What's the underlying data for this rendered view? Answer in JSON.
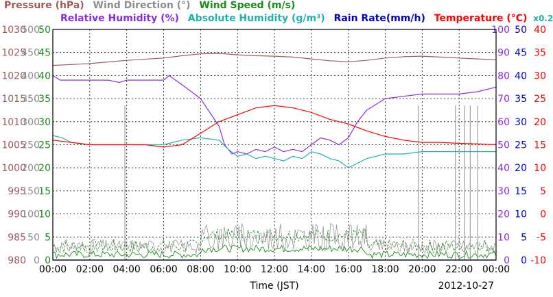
{
  "chart_data": {
    "type": "line",
    "date_label": "2012-10-27",
    "xlabel": "Time (JST)",
    "x_ticks": [
      "00:00",
      "02:00",
      "04:00",
      "06:00",
      "08:00",
      "10:00",
      "12:00",
      "14:00",
      "16:00",
      "18:00",
      "20:00",
      "22:00",
      "00:00"
    ],
    "legend_row1": [
      {
        "text": "Pressure (hPa)",
        "color": "#a05a5a"
      },
      {
        "text": "Wind Direction (°)",
        "color": "#8c8c8c"
      },
      {
        "text": "Wind Speed (m/s)",
        "color": "#1a8c1a"
      }
    ],
    "legend_row2": [
      {
        "text": "Relative Humidity (%)",
        "color": "#8a2be2"
      },
      {
        "text": "Absolute Humidity (g/m³)",
        "color": "#20b2aa"
      },
      {
        "text": "Rain Rate(mm/h)",
        "color": "#0000cc"
      },
      {
        "text": "Temperature (°C)",
        "color": "#ff0000"
      },
      {
        "text": "x0.2",
        "color": "#20b2aa"
      }
    ],
    "axes": {
      "pressure": {
        "color": "#a05a5a",
        "ticks": [
          "980",
          "985",
          "990",
          "995",
          "1000",
          "1005",
          "1010",
          "1015",
          "1020",
          "1025",
          "1030"
        ]
      },
      "wind_direction": {
        "color": "#8c8c8c",
        "ticks": [
          "0",
          "50",
          "100",
          "150",
          "200",
          "250",
          "300",
          "350",
          "400",
          "450",
          "500"
        ]
      },
      "wind_speed": {
        "color": "#1a8c1a",
        "ticks": [
          "0",
          "5",
          "10",
          "15",
          "20",
          "25",
          "30",
          "35",
          "40",
          "45",
          "50"
        ]
      },
      "relative_humidity": {
        "color": "#8a2be2",
        "ticks": [
          "0",
          "10",
          "20",
          "30",
          "40",
          "50",
          "60",
          "70",
          "80",
          "90",
          "100"
        ]
      },
      "rain_rate": {
        "color": "#0000cc",
        "ticks": [
          "0",
          "5",
          "10",
          "15",
          "20",
          "25",
          "30",
          "35",
          "40",
          "45",
          "50"
        ]
      },
      "temperature": {
        "color": "#ff0000",
        "ticks": [
          "-10",
          "-5",
          "0",
          "5",
          "10",
          "15",
          "20",
          "25",
          "30",
          "35",
          "40"
        ]
      }
    },
    "x_range_hours": [
      0,
      24
    ],
    "grid": true,
    "series": [
      {
        "name": "Pressure (hPa)",
        "axis": "pressure",
        "color": "#a05a5a",
        "x": [
          0,
          2,
          4,
          6,
          7,
          8,
          9,
          10,
          11,
          12,
          13,
          14,
          15,
          16,
          17,
          18,
          19,
          20,
          21,
          22,
          23,
          24
        ],
        "y": [
          1022.2,
          1022.6,
          1023.3,
          1023.8,
          1024.3,
          1024.7,
          1024.8,
          1024.5,
          1024.3,
          1024.2,
          1024.0,
          1023.6,
          1023.2,
          1023.0,
          1023.3,
          1023.8,
          1024.1,
          1024.2,
          1024.0,
          1023.8,
          1023.6,
          1023.4
        ]
      },
      {
        "name": "Relative Humidity (%)",
        "axis": "relative_humidity",
        "color": "#8a2be2",
        "x": [
          0,
          0.4,
          1,
          2,
          3,
          3.6,
          4,
          5,
          6,
          6.3,
          7,
          8,
          9,
          9.3,
          9.7,
          10,
          10.5,
          11,
          11.5,
          12,
          12.5,
          13,
          13.5,
          14,
          14.5,
          15,
          15.5,
          16,
          16.5,
          17,
          18,
          19,
          20,
          21,
          22,
          23,
          24
        ],
        "y": [
          80,
          78,
          78,
          78,
          78,
          77,
          78,
          78,
          78,
          80,
          76,
          70,
          58,
          50,
          46,
          47,
          46,
          48,
          47,
          49,
          47,
          48,
          47,
          50,
          53,
          52,
          50,
          53,
          60,
          65,
          70,
          71,
          72,
          72,
          72,
          73,
          75
        ]
      },
      {
        "name": "Absolute Humidity (g/m³)",
        "axis": "wind_speed",
        "color": "#20b2aa",
        "x": [
          0,
          0.5,
          1,
          2,
          3,
          4,
          5,
          6,
          7,
          8,
          9,
          9.5,
          10,
          10.5,
          11,
          11.5,
          12,
          12.5,
          13,
          13.5,
          14,
          14.5,
          15,
          15.5,
          16,
          16.5,
          17,
          18,
          19,
          20,
          21,
          22,
          23,
          24
        ],
        "y": [
          27,
          26.5,
          25.5,
          25,
          25,
          25,
          25,
          25,
          26,
          26.5,
          26,
          24,
          22.5,
          23,
          22,
          22.5,
          22,
          21.5,
          22.5,
          22,
          23.5,
          23,
          22,
          21.5,
          20,
          21,
          22,
          23,
          23,
          23.5,
          23.5,
          23.5,
          23.5,
          23.5
        ]
      },
      {
        "name": "Temperature (°C)",
        "axis": "temperature",
        "color": "#ff0000",
        "x": [
          0,
          1,
          2,
          3,
          4,
          5,
          6,
          7,
          8,
          9,
          10,
          11,
          12,
          13,
          14,
          15,
          16,
          17,
          18,
          19,
          20,
          21,
          22,
          23,
          24
        ],
        "y": [
          16,
          15.5,
          15,
          15,
          15,
          15,
          14.5,
          15,
          17.5,
          20,
          21.5,
          23,
          23.5,
          23,
          22,
          20.5,
          19.5,
          18,
          16.8,
          16,
          15.5,
          15.5,
          15.3,
          15.2,
          15
        ]
      },
      {
        "name": "Rain Rate(mm/h)",
        "axis": "rain_rate",
        "color": "#0000cc",
        "x": [
          0,
          24
        ],
        "y": [
          0,
          0
        ]
      }
    ],
    "wind_direction_spikes": [
      {
        "x": 3.9,
        "y": 335
      },
      {
        "x": 19.8,
        "y": 335
      },
      {
        "x": 21.8,
        "y": 335
      },
      {
        "x": 22.3,
        "y": 335
      },
      {
        "x": 22.6,
        "y": 335
      },
      {
        "x": 23.0,
        "y": 335
      }
    ]
  }
}
